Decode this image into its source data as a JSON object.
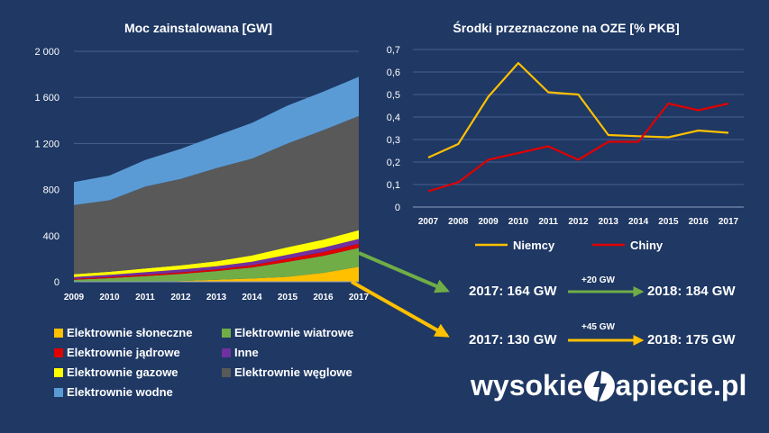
{
  "colors": {
    "background": "#1f3864",
    "solar": "#ffc000",
    "wind": "#70ad47",
    "nuclear": "#e00000",
    "other": "#7030a0",
    "gas": "#ffff00",
    "coal": "#595959",
    "hydro": "#5b9bd5",
    "germany": "#ffc000",
    "china": "#e00000"
  },
  "chart_data": [
    {
      "type": "area",
      "title": "Moc zainstalowana [GW]",
      "x": [
        2009,
        2010,
        2011,
        2012,
        2013,
        2014,
        2015,
        2016,
        2017
      ],
      "ylim": [
        0,
        2000
      ],
      "yticks": [
        "0",
        "400",
        "800",
        "1 200",
        "1 600",
        "2 000"
      ],
      "xticks": [
        "2009",
        "2010",
        "2011",
        "2012",
        "2013",
        "2014",
        "2015",
        "2016",
        "2017"
      ],
      "stacked": true,
      "series": [
        {
          "name": "Elektrownie słoneczne",
          "color": "#ffc000",
          "values": [
            0,
            1,
            3,
            7,
            17,
            28,
            43,
            77,
            130
          ]
        },
        {
          "name": "Elektrownie wiatrowe",
          "color": "#70ad47",
          "values": [
            17,
            30,
            46,
            62,
            76,
            96,
            130,
            148,
            164
          ]
        },
        {
          "name": "Elektrownie jądrowe",
          "color": "#e00000",
          "values": [
            9,
            11,
            12,
            13,
            15,
            20,
            27,
            33,
            36
          ]
        },
        {
          "name": "Inne",
          "color": "#7030a0",
          "values": [
            15,
            18,
            22,
            24,
            26,
            30,
            34,
            38,
            42
          ]
        },
        {
          "name": "Elektrownie gazowe",
          "color": "#ffff00",
          "values": [
            25,
            27,
            33,
            37,
            43,
            55,
            66,
            70,
            76
          ]
        },
        {
          "name": "Elektrownie węglowe",
          "color": "#595959",
          "values": [
            600,
            620,
            710,
            750,
            810,
            840,
            900,
            950,
            990
          ]
        },
        {
          "name": "Elektrownie wodne",
          "color": "#5b9bd5",
          "values": [
            200,
            215,
            230,
            260,
            280,
            310,
            330,
            333,
            341
          ]
        }
      ],
      "legend": "bottom"
    },
    {
      "type": "line",
      "title": "Środki przeznaczone na OZE [% PKB]",
      "x": [
        2007,
        2008,
        2009,
        2010,
        2011,
        2012,
        2013,
        2014,
        2015,
        2016,
        2017
      ],
      "ylim": [
        0,
        0.7
      ],
      "yticks": [
        "0",
        "0,1",
        "0,2",
        "0,3",
        "0,4",
        "0,5",
        "0,6",
        "0,7"
      ],
      "xticks": [
        "2007",
        "2008",
        "2009",
        "2010",
        "2011",
        "2012",
        "2013",
        "2014",
        "2015",
        "2016",
        "2017"
      ],
      "series": [
        {
          "name": "Niemcy",
          "color": "#ffc000",
          "values": [
            0.22,
            0.28,
            0.49,
            0.64,
            0.51,
            0.5,
            0.32,
            0.315,
            0.31,
            0.34,
            0.33
          ]
        },
        {
          "name": "Chiny",
          "color": "#e00000",
          "values": [
            0.07,
            0.11,
            0.21,
            0.24,
            0.27,
            0.21,
            0.29,
            0.29,
            0.46,
            0.43,
            0.46
          ]
        }
      ],
      "legend": "bottom"
    }
  ],
  "flows": {
    "wind": {
      "from": "2017: 164 GW",
      "delta": "+20 GW",
      "to": "2018: 184 GW"
    },
    "solar": {
      "from": "2017: 130 GW",
      "delta": "+45 GW",
      "to": "2018: 175 GW"
    }
  },
  "brand": {
    "left": "wysokie",
    "right": "apiecie.pl"
  }
}
